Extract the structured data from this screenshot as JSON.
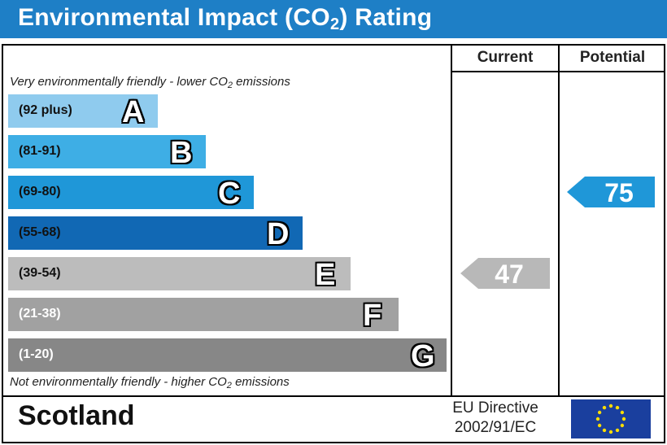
{
  "title": {
    "main": "Environmental Impact (CO",
    "sub": "2",
    "end": ") Rating"
  },
  "columns": {
    "current": "Current",
    "potential": "Potential"
  },
  "top_note": {
    "pre": "Very environmentally friendly - lower CO",
    "sub": "2",
    "post": " emissions"
  },
  "bottom_note": {
    "pre": "Not environmentally friendly - higher CO",
    "sub": "2",
    "post": " emissions"
  },
  "bands": [
    {
      "letter": "A",
      "range": "(92 plus)",
      "color": "#8fcbee"
    },
    {
      "letter": "B",
      "range": "(81-91)",
      "color": "#3eaee5"
    },
    {
      "letter": "C",
      "range": "(69-80)",
      "color": "#1f97d8"
    },
    {
      "letter": "D",
      "range": "(55-68)",
      "color": "#1168b4"
    },
    {
      "letter": "E",
      "range": "(39-54)",
      "color": "#bcbcbc"
    },
    {
      "letter": "F",
      "range": "(21-38)",
      "color": "#a1a1a1"
    },
    {
      "letter": "G",
      "range": "(1-20)",
      "color": "#878787"
    }
  ],
  "current": {
    "value": "47",
    "band": "E",
    "color": "#b8b8b8"
  },
  "potential": {
    "value": "75",
    "band": "C",
    "color": "#1f97d8"
  },
  "footer": {
    "region": "Scotland",
    "directive_line1": "EU Directive",
    "directive_line2": "2002/91/EC"
  },
  "flag": {
    "name": "eu-flag",
    "background": "#1a3f9e",
    "stars": "#ffdd00"
  }
}
